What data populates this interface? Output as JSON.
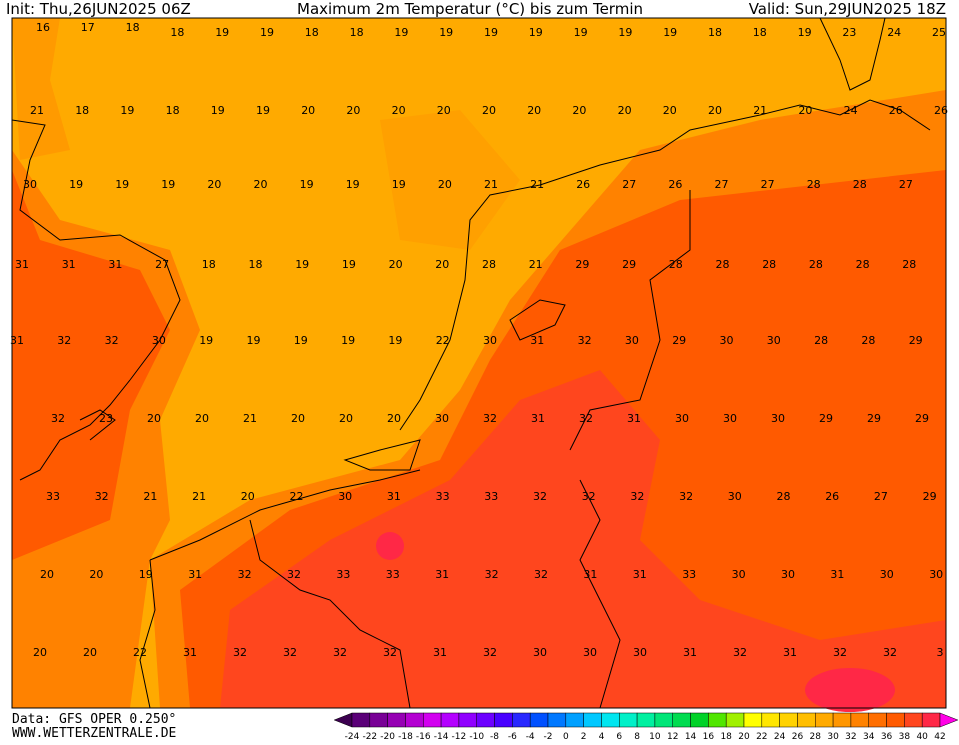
{
  "header": {
    "init": "Init: Thu,26JUN2025 06Z",
    "title": "Maximum 2m Temperatur (°C) bis zum Termin",
    "valid": "Valid: Sun,29JUN2025 18Z"
  },
  "map": {
    "rows": [
      [
        16,
        17,
        18,
        18,
        19,
        19,
        18,
        18,
        19,
        19,
        19,
        19,
        19,
        19,
        19,
        18,
        18,
        19,
        23,
        24,
        25
      ],
      [
        21,
        18,
        19,
        18,
        19,
        19,
        20,
        20,
        20,
        20,
        20,
        20,
        20,
        20,
        20,
        20,
        21,
        20,
        24,
        26,
        26
      ],
      [
        30,
        19,
        19,
        19,
        20,
        20,
        19,
        19,
        19,
        20,
        21,
        21,
        26,
        27,
        26,
        27,
        27,
        28,
        28,
        27
      ],
      [
        31,
        31,
        31,
        27,
        18,
        18,
        19,
        19,
        20,
        20,
        28,
        21,
        29,
        29,
        28,
        28,
        28,
        28,
        28,
        28
      ],
      [
        31,
        32,
        32,
        30,
        19,
        19,
        19,
        19,
        19,
        22,
        30,
        31,
        32,
        30,
        29,
        30,
        30,
        28,
        28,
        29
      ],
      [
        32,
        23,
        20,
        20,
        21,
        20,
        20,
        20,
        30,
        32,
        31,
        32,
        31,
        30,
        30,
        30,
        29,
        29,
        29
      ],
      [
        33,
        32,
        21,
        21,
        20,
        22,
        30,
        31,
        33,
        33,
        32,
        32,
        32,
        32,
        30,
        28,
        26,
        27,
        29
      ],
      [
        20,
        20,
        19,
        31,
        32,
        32,
        33,
        33,
        31,
        32,
        32,
        31,
        31,
        33,
        30,
        30,
        31,
        30,
        30
      ],
      [
        20,
        20,
        22,
        31,
        32,
        32,
        32,
        32,
        31,
        32,
        30,
        30,
        30,
        31,
        32,
        31,
        32,
        32,
        3
      ]
    ]
  },
  "colorbar": {
    "labels": [
      -24,
      -22,
      -20,
      -18,
      -16,
      -14,
      -12,
      -10,
      -8,
      -6,
      -4,
      -2,
      0,
      2,
      4,
      6,
      8,
      10,
      12,
      14,
      16,
      18,
      20,
      22,
      24,
      26,
      28,
      30,
      32,
      34,
      36,
      38,
      40,
      42
    ],
    "colors": [
      "#3c0050",
      "#5a0078",
      "#780096",
      "#9600b4",
      "#b400d2",
      "#d200f0",
      "#b400ff",
      "#9000ff",
      "#6c00ff",
      "#4800ff",
      "#2828ff",
      "#0050ff",
      "#0078ff",
      "#00a0ff",
      "#00c8ff",
      "#00e6f0",
      "#00f0c8",
      "#00f0a0",
      "#00e678",
      "#00dc50",
      "#00d228",
      "#50e600",
      "#a0f000",
      "#ffff00",
      "#ffe600",
      "#ffd200",
      "#ffbe00",
      "#ffaa00",
      "#ff9600",
      "#ff8200",
      "#ff6e00",
      "#ff5a00",
      "#ff461e",
      "#ff2846",
      "#ff00e6"
    ]
  },
  "footer": {
    "source": "Data: GFS OPER 0.250°",
    "website": "WWW.WETTERZENTRALE.DE"
  }
}
